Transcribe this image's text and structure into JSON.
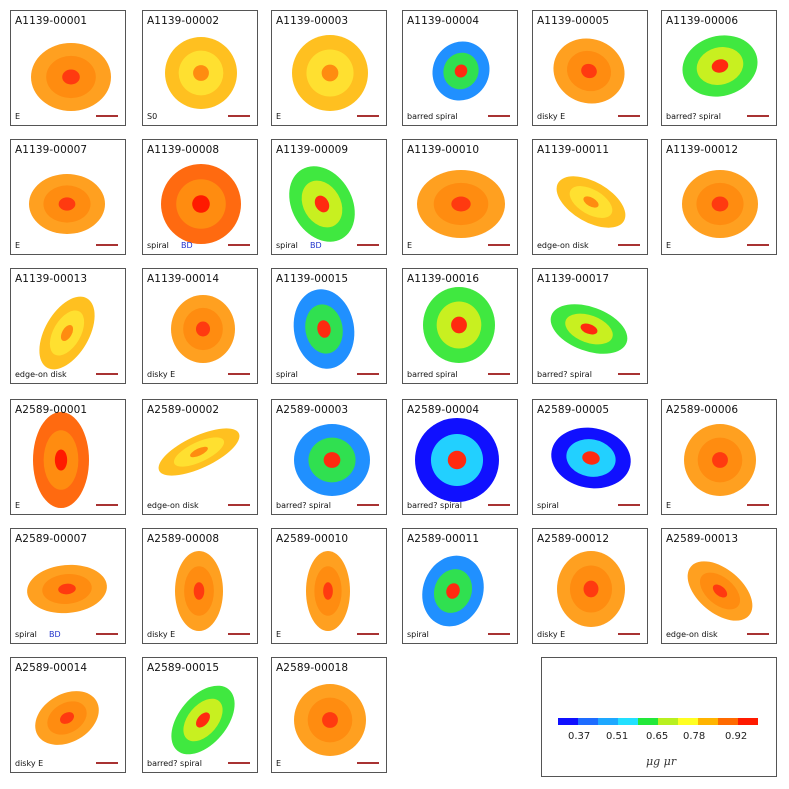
{
  "panels": [
    {
      "id": "A1139-00001",
      "cls": "E"
    },
    {
      "id": "A1139-00002",
      "cls": "S0"
    },
    {
      "id": "A1139-00003",
      "cls": "E"
    },
    {
      "id": "A1139-00004",
      "cls": "barred spiral"
    },
    {
      "id": "A1139-00005",
      "cls": "disky E"
    },
    {
      "id": "A1139-00006",
      "cls": "barred? spiral"
    },
    {
      "id": "A1139-00007",
      "cls": "E"
    },
    {
      "id": "A1139-00008",
      "cls": "spiral",
      "bd": "BD"
    },
    {
      "id": "A1139-00009",
      "cls": "spiral",
      "bd": "BD"
    },
    {
      "id": "A1139-00010",
      "cls": "E"
    },
    {
      "id": "A1139-00011",
      "cls": "edge-on disk"
    },
    {
      "id": "A1139-00012",
      "cls": "E"
    },
    {
      "id": "A1139-00013",
      "cls": "edge-on disk"
    },
    {
      "id": "A1139-00014",
      "cls": "disky E"
    },
    {
      "id": "A1139-00015",
      "cls": "spiral"
    },
    {
      "id": "A1139-00016",
      "cls": "barred spiral"
    },
    {
      "id": "A1139-00017",
      "cls": "barred? spiral"
    },
    {
      "id": "A2589-00001",
      "cls": "E"
    },
    {
      "id": "A2589-00002",
      "cls": "edge-on disk"
    },
    {
      "id": "A2589-00003",
      "cls": "barred? spiral"
    },
    {
      "id": "A2589-00004",
      "cls": "barred? spiral"
    },
    {
      "id": "A2589-00005",
      "cls": "spiral"
    },
    {
      "id": "A2589-00006",
      "cls": "E"
    },
    {
      "id": "A2589-00007",
      "cls": "spiral",
      "bd": "BD"
    },
    {
      "id": "A2589-00008",
      "cls": "disky E"
    },
    {
      "id": "A2589-00010",
      "cls": "E"
    },
    {
      "id": "A2589-00011",
      "cls": "spiral"
    },
    {
      "id": "A2589-00012",
      "cls": "disky E"
    },
    {
      "id": "A2589-00013",
      "cls": "edge-on disk"
    },
    {
      "id": "A2589-00014",
      "cls": "disky E"
    },
    {
      "id": "A2589-00015",
      "cls": "barred? spiral"
    },
    {
      "id": "A2589-00018",
      "cls": "E"
    }
  ],
  "colorbar": {
    "colors": [
      "#1010ff",
      "#1e6cff",
      "#1ea8ff",
      "#22e0ff",
      "#22e83a",
      "#b8f020",
      "#ffff22",
      "#ffb400",
      "#ff6a00",
      "#ff1a00"
    ],
    "ticks": [
      "0.37",
      "0.51",
      "0.65",
      "0.78",
      "0.92"
    ],
    "label": "μg  μr"
  },
  "theme": {
    "scalebar": "#a83232",
    "bd_color": "#2233cc"
  }
}
